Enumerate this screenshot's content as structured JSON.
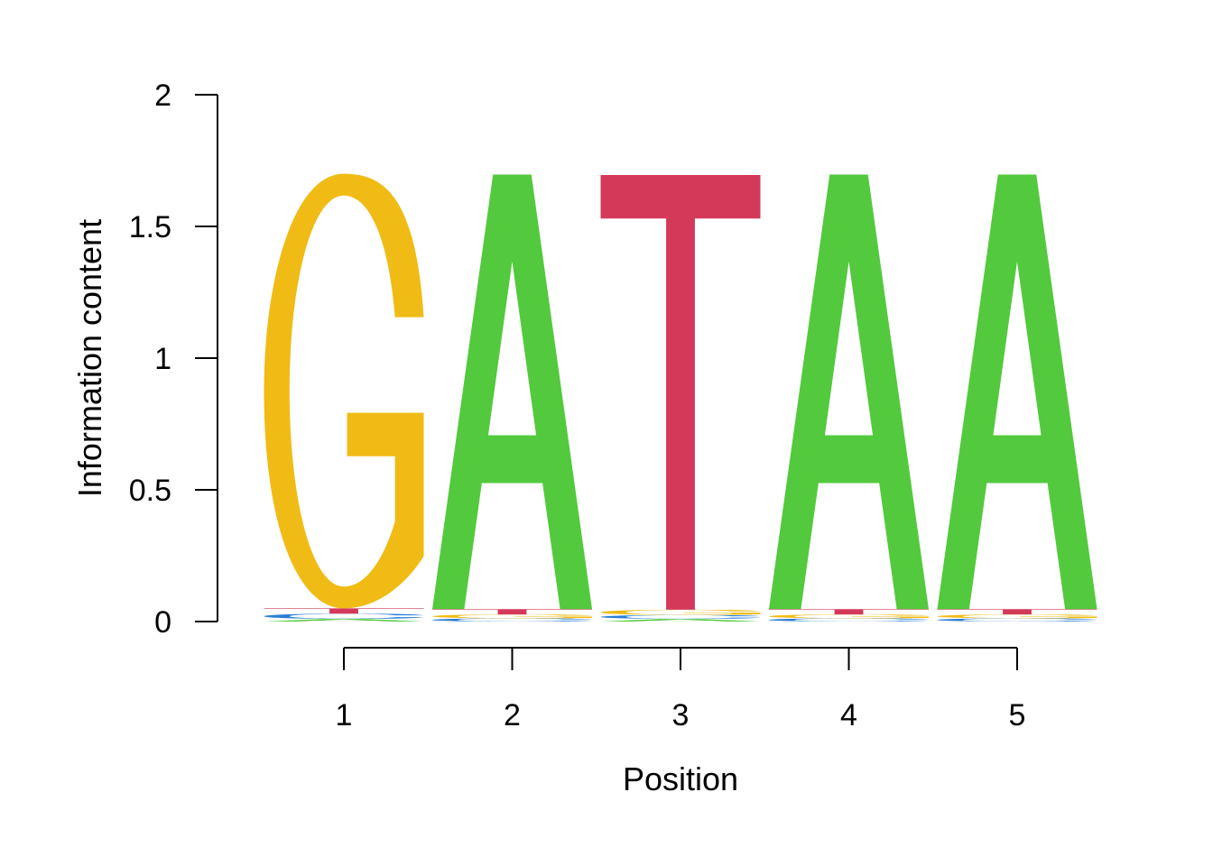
{
  "chart_data": {
    "type": "sequence-logo",
    "xlabel": "Position",
    "ylabel": "Information content",
    "ylim": [
      0,
      2
    ],
    "yticks": [
      "0",
      "0.5",
      "1",
      "1.5",
      "2"
    ],
    "ytick_values": [
      0,
      0.5,
      1,
      1.5,
      2
    ],
    "positions": [
      "1",
      "2",
      "3",
      "4",
      "5"
    ],
    "colors": {
      "A": "#53c93d",
      "C": "#2a7fd5",
      "G": "#f0bb14",
      "T": "#d4395a"
    },
    "columns": [
      {
        "position": 1,
        "stack": [
          {
            "letter": "A",
            "height": 0.01
          },
          {
            "letter": "C",
            "height": 0.02
          },
          {
            "letter": "T",
            "height": 0.02
          },
          {
            "letter": "G",
            "height": 1.65
          }
        ]
      },
      {
        "position": 2,
        "stack": [
          {
            "letter": "C",
            "height": 0.012
          },
          {
            "letter": "G",
            "height": 0.015
          },
          {
            "letter": "T",
            "height": 0.02
          },
          {
            "letter": "A",
            "height": 1.65
          }
        ]
      },
      {
        "position": 3,
        "stack": [
          {
            "letter": "A",
            "height": 0.01
          },
          {
            "letter": "C",
            "height": 0.015
          },
          {
            "letter": "G",
            "height": 0.02
          },
          {
            "letter": "T",
            "height": 1.65
          }
        ]
      },
      {
        "position": 4,
        "stack": [
          {
            "letter": "C",
            "height": 0.012
          },
          {
            "letter": "G",
            "height": 0.015
          },
          {
            "letter": "T",
            "height": 0.02
          },
          {
            "letter": "A",
            "height": 1.65
          }
        ]
      },
      {
        "position": 5,
        "stack": [
          {
            "letter": "C",
            "height": 0.012
          },
          {
            "letter": "G",
            "height": 0.015
          },
          {
            "letter": "T",
            "height": 0.02
          },
          {
            "letter": "A",
            "height": 1.65
          }
        ]
      }
    ]
  }
}
